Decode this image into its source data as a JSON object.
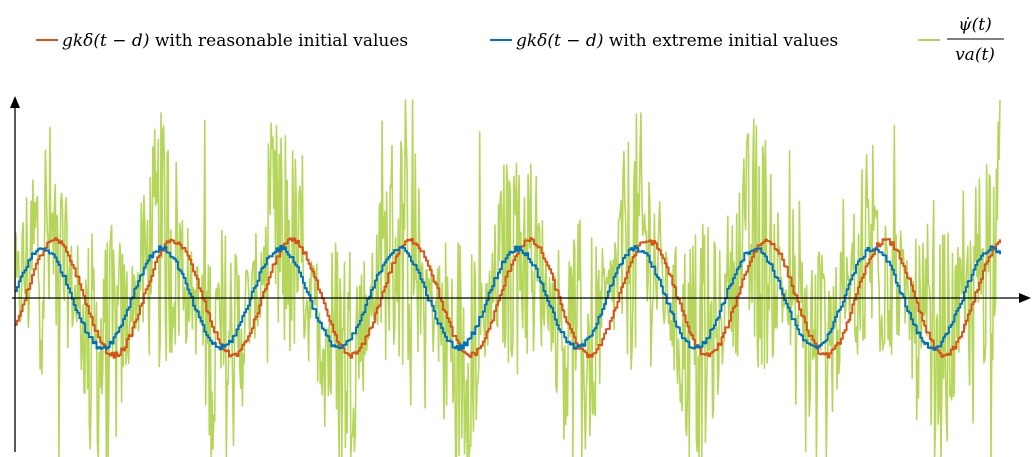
{
  "chart_data": {
    "type": "line",
    "title": "",
    "xlabel": "",
    "ylabel": "",
    "axes": {
      "x_ticks": false,
      "y_ticks": false,
      "grid": false,
      "axis_arrows": true
    },
    "legend": {
      "placement": "top",
      "items": [
        {
          "id": "reasonable",
          "label": "g_k δ(t − d) with reasonable initial values",
          "label_math": "gkδ(t − d)",
          "label_text": " with reasonable initial values",
          "color": "#d95319"
        },
        {
          "id": "extreme",
          "label": "g_k δ(t − d) with extreme initial values",
          "label_math": "gkδ(t − d)",
          "label_text": " with extreme initial values",
          "color": "#0072bd"
        },
        {
          "id": "measured",
          "label": "ψ̇(t) / v_a(t)",
          "label_num": "ψ̇(t)",
          "label_den": "va(t)",
          "color": "#b5d65a"
        }
      ]
    },
    "x_range": [
      0,
      8.3
    ],
    "y_range": [
      -1.6,
      2.0
    ],
    "series": [
      {
        "id": "measured",
        "name": "ψ̇(t)/v_a(t)",
        "color": "#b5d65a",
        "amplitude": 0.5,
        "period": 1.0,
        "phase": 0.0,
        "noise": 0.55
      },
      {
        "id": "reasonable",
        "name": "g_k δ(t − d) with reasonable initial values",
        "color": "#d95319",
        "amplitude": 0.52,
        "period": 1.0,
        "phase": 0.08
      },
      {
        "id": "extreme",
        "name": "g_k δ(t − d) with extreme initial values",
        "color": "#0072bd",
        "amplitude": 0.45,
        "period": 1.0,
        "phase": -0.02
      }
    ]
  }
}
